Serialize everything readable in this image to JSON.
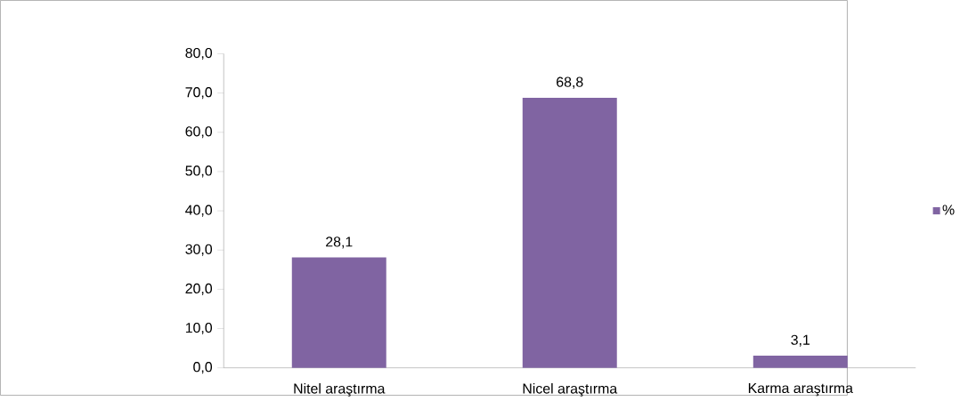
{
  "chart_data": {
    "type": "bar",
    "categories": [
      "Nitel araştırma",
      "Nicel araştırma",
      "Karma araştırma"
    ],
    "series": [
      {
        "name": "%",
        "color": "#8064a2",
        "values": [
          28.1,
          68.8,
          3.1
        ],
        "value_labels": [
          "28,1",
          "68,8",
          "3,1"
        ]
      }
    ],
    "ylim": [
      0,
      80
    ],
    "yticks": [
      {
        "value": 0,
        "label": "0,0"
      },
      {
        "value": 10,
        "label": "10,0"
      },
      {
        "value": 20,
        "label": "20,0"
      },
      {
        "value": 30,
        "label": "30,0"
      },
      {
        "value": 40,
        "label": "40,0"
      },
      {
        "value": 50,
        "label": "50,0"
      },
      {
        "value": 60,
        "label": "60,0"
      },
      {
        "value": 70,
        "label": "70,0"
      },
      {
        "value": 80,
        "label": "80,0"
      }
    ],
    "grid": false,
    "legend": "right"
  }
}
